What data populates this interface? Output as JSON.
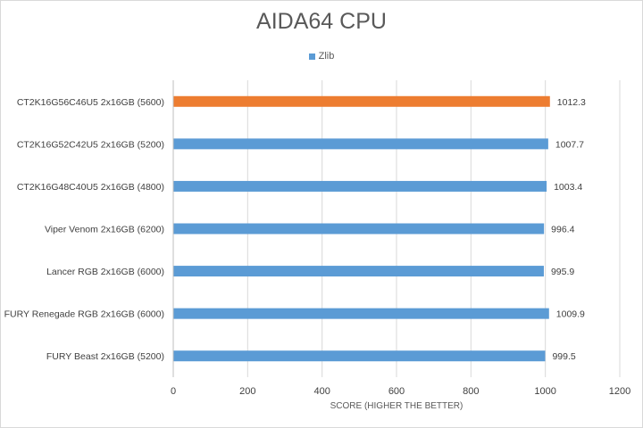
{
  "chart_data": {
    "type": "bar",
    "orientation": "horizontal",
    "title": "AIDA64 CPU",
    "xlabel": "SCORE (HIGHER THE BETTER)",
    "ylabel": "",
    "categories": [
      "CT2K16G56C46U5 2x16GB (5600)",
      "CT2K16G52C42U5 2x16GB (5200)",
      "CT2K16G48C40U5 2x16GB (4800)",
      "Viper Venom 2x16GB (6200)",
      "Lancer RGB 2x16GB (6000)",
      "FURY Renegade RGB 2x16GB (6000)",
      "FURY Beast 2x16GB (5200)"
    ],
    "series": [
      {
        "name": "Zlib",
        "values": [
          1012.3,
          1007.7,
          1003.4,
          996.4,
          995.9,
          1009.9,
          999.5
        ],
        "value_labels": [
          "1012.3",
          "1007.7",
          "1003.4",
          "996.4",
          "995.9",
          "1009.9",
          "999.5"
        ]
      }
    ],
    "xlim": [
      0,
      1200
    ],
    "xticks": [
      0,
      200,
      400,
      600,
      800,
      1000,
      1200
    ],
    "xtick_labels": [
      "0",
      "200",
      "400",
      "600",
      "800",
      "1000",
      "1200"
    ],
    "grid": "vertical",
    "legend": "top",
    "colors": {
      "series": "#5b9bd5",
      "highlight": "#ed7d31",
      "grid": "#d9d9d9"
    },
    "highlight_index": 0
  }
}
